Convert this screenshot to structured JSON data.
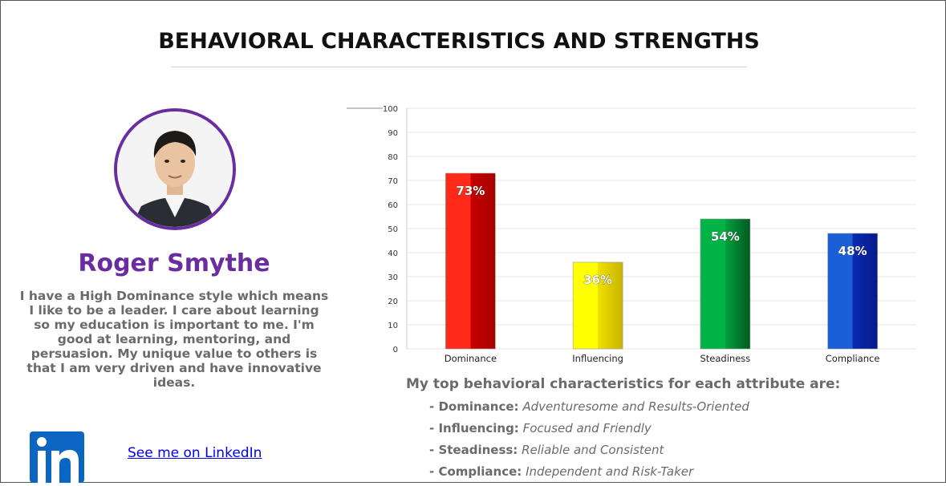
{
  "header": {
    "title": "BEHAVIORAL CHARACTERISTICS AND STRENGTHS"
  },
  "profile": {
    "name": "Roger Smythe",
    "bio": "I have a High Dominance style which means I like to be a leader. I care about learning so my education is important to me. I'm good at learning, mentoring, and persuasion. My unique value to others is that I am very driven and have innovative ideas.",
    "linkedin_label": "See me on LinkedIn"
  },
  "colors": {
    "accent": "#6a2da0",
    "dominance": "#e01010",
    "influencing": "#f0e000",
    "steadiness": "#00a040",
    "compliance": "#0a2ab0"
  },
  "chart_data": {
    "type": "bar",
    "categories": [
      "Dominance",
      "Influencing",
      "Steadiness",
      "Compliance"
    ],
    "values": [
      73,
      36,
      54,
      48
    ],
    "data_labels": [
      "73%",
      "36%",
      "54%",
      "48%"
    ],
    "ylim": [
      0,
      100
    ],
    "yticks": [
      0,
      10,
      20,
      30,
      40,
      50,
      60,
      70,
      80,
      90,
      100
    ],
    "grid": true
  },
  "traits": {
    "heading": "My top behavioral characteristics for each attribute are:",
    "items": [
      {
        "label": "- Dominance:",
        "value": "Adventuresome and Results-Oriented"
      },
      {
        "label": "- Influencing:",
        "value": "Focused and Friendly"
      },
      {
        "label": "- Steadiness:",
        "value": "Reliable and Consistent"
      },
      {
        "label": "- Compliance:",
        "value": "Independent and Risk-Taker"
      }
    ]
  }
}
